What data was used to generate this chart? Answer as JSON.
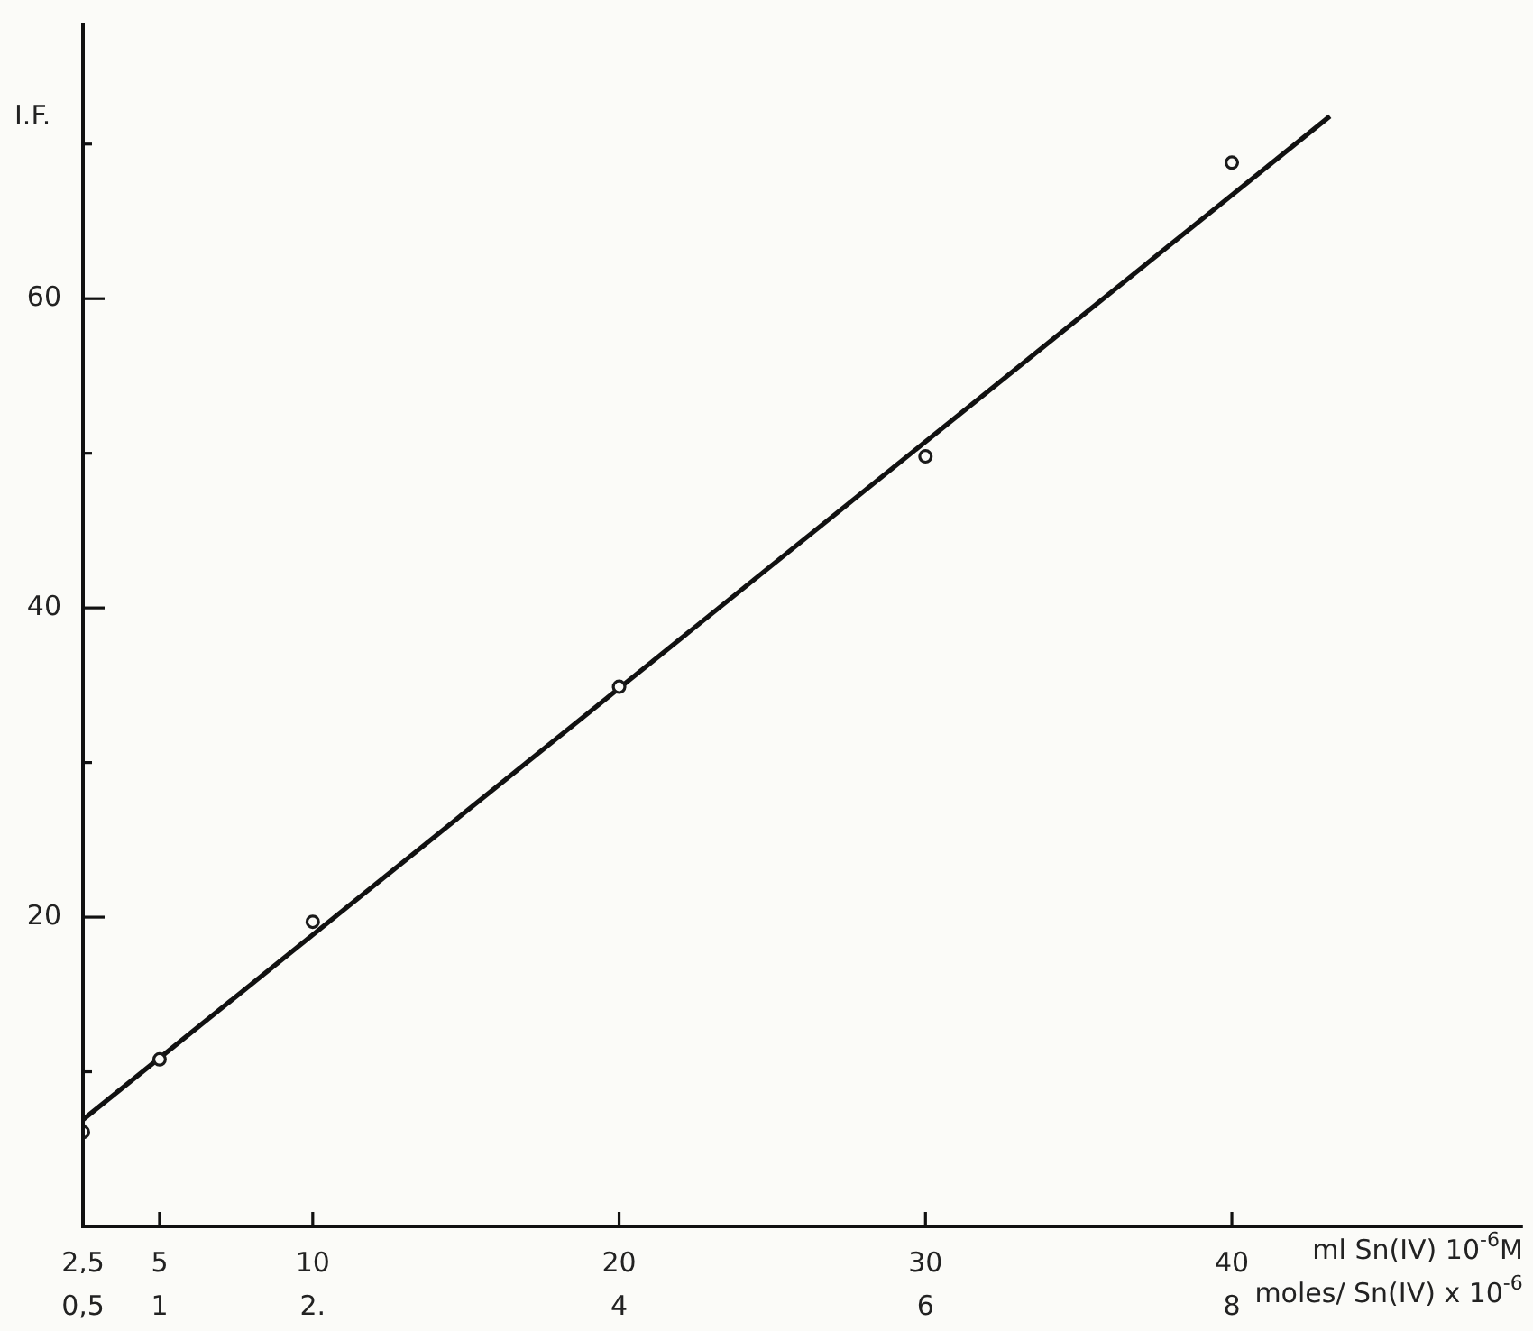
{
  "chart_data": {
    "type": "scatter",
    "xlabel": "ml Sn(IV) 10$^{-6}$M",
    "x2label": "moles/ Sn(IV) x 10$^{-6}$",
    "ylabel": "I.F.",
    "series": [
      {
        "color": "#1a1a1a",
        "marker": "circle",
        "x": [
          2.5,
          5,
          10,
          20,
          30,
          40
        ],
        "values": [
          6.1,
          10.8,
          19.7,
          34.9,
          49.8,
          68.8
        ]
      },
      {
        "type": "line",
        "color": "#111111",
        "marker": "none",
        "line_style": "solid",
        "x": [
          2.5,
          43.2
        ],
        "values": [
          6.9,
          71.8
        ]
      }
    ],
    "xlim": [
      2.5,
      49.5
    ],
    "xticks": [
      {
        "value": 2.5,
        "label": "2,5"
      },
      5,
      10,
      20,
      30,
      40
    ],
    "x2lim": [
      0.5,
      9.9
    ],
    "x2ticks": [
      {
        "value": 0.5,
        "label": "0,5"
      },
      1,
      {
        "value": 2,
        "label": "2."
      },
      4,
      6,
      8
    ],
    "ylim": [
      0,
      77.8
    ],
    "yticks": [
      {
        "value": 10,
        "label": null
      },
      20,
      {
        "value": 30,
        "label": null
      },
      40,
      {
        "value": 50,
        "label": null
      },
      60,
      {
        "value": 70,
        "label": null
      }
    ]
  }
}
